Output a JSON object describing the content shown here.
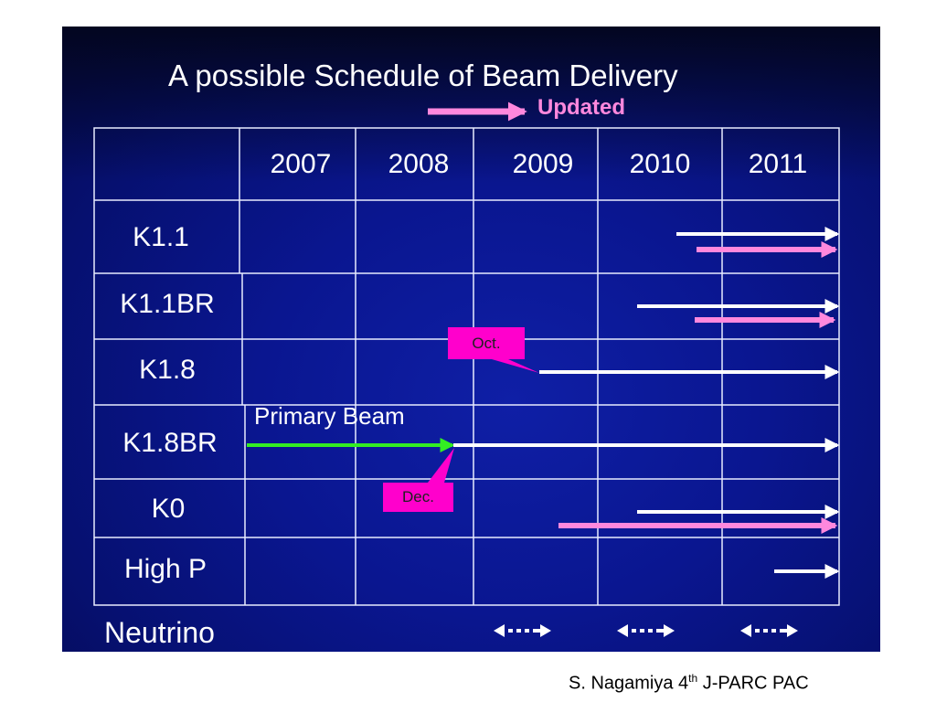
{
  "slide": {
    "title": "A possible Schedule of Beam Delivery",
    "updated_label": "Updated",
    "primary_beam_label": "Primary Beam",
    "neutrino_label": "Neutrino",
    "footer": {
      "author": "S. Nagamiya 4",
      "sup": "th",
      "event": " J-PARC PAC"
    }
  },
  "table": {
    "years": [
      "2007",
      "2008",
      "2009",
      "2010",
      "2011"
    ],
    "rows": [
      "K1.1",
      "K1.1BR",
      "K1.8",
      "K1.8BR",
      "K0",
      "High P"
    ]
  },
  "callouts": {
    "oct": "Oct.",
    "dec": "Dec."
  },
  "colors": {
    "background": "#0a1690",
    "grid": "#ffffff",
    "original_arrow": "#ffffff",
    "updated_arrow": "#ff88dd",
    "primary_beam_arrow": "#33ee22",
    "callout": "#ff00cc"
  }
}
